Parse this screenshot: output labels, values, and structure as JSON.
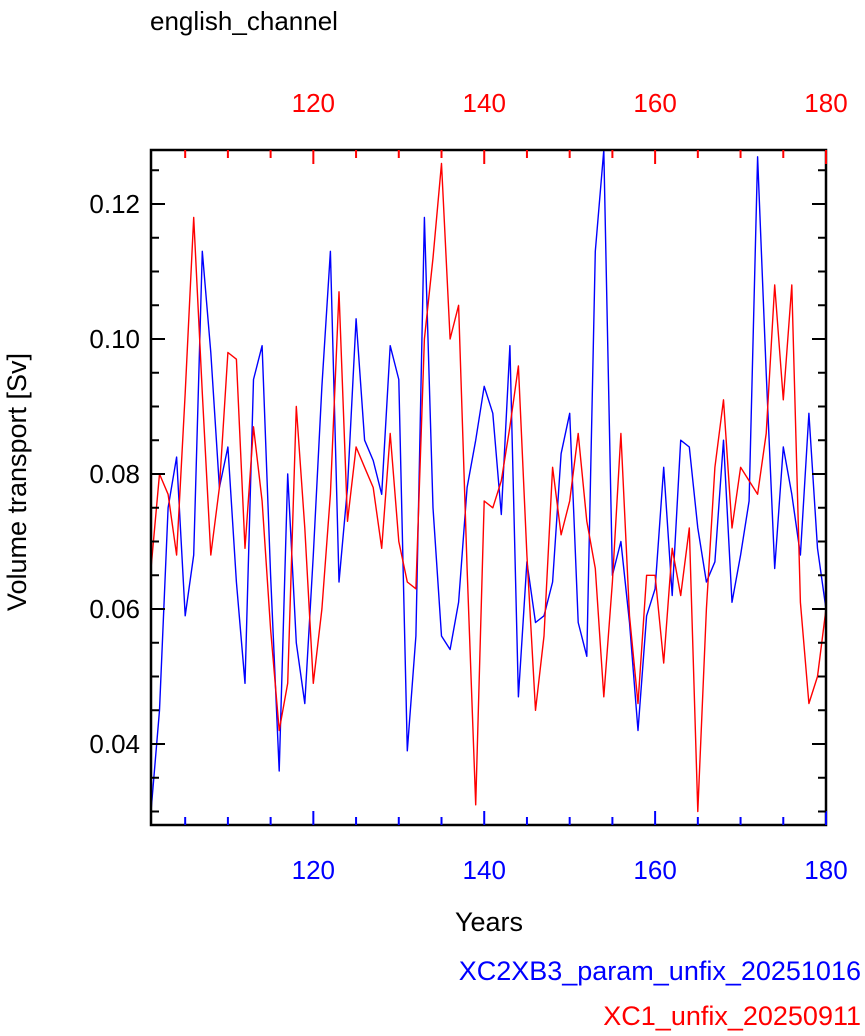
{
  "chart_data": {
    "type": "line",
    "title": "english_channel",
    "xlabel": "Years",
    "ylabel": "Volume transport [Sv]",
    "xlim": [
      101,
      180
    ],
    "ylim": [
      0.028,
      0.128
    ],
    "bottom_axis": {
      "color": "#0000ff",
      "ticks": [
        "120",
        "140",
        "160",
        "180"
      ],
      "tick_values": [
        120,
        140,
        160,
        180
      ]
    },
    "top_axis": {
      "color": "#ff0000",
      "ticks": [
        "120",
        "140",
        "160",
        "180"
      ],
      "tick_values": [
        120,
        140,
        160,
        180
      ]
    },
    "y_ticks": [
      "0.04",
      "0.06",
      "0.08",
      "0.10",
      "0.12"
    ],
    "y_tick_values": [
      0.04,
      0.06,
      0.08,
      0.1,
      0.12
    ],
    "grid": false,
    "legend_placement": "bottom-right",
    "x": [
      101,
      102,
      103,
      104,
      105,
      106,
      107,
      108,
      109,
      110,
      111,
      112,
      113,
      114,
      115,
      116,
      117,
      118,
      119,
      120,
      121,
      122,
      123,
      124,
      125,
      126,
      127,
      128,
      129,
      130,
      131,
      132,
      133,
      134,
      135,
      136,
      137,
      138,
      139,
      140,
      141,
      142,
      143,
      144,
      145,
      146,
      147,
      148,
      149,
      150,
      151,
      152,
      153,
      154,
      155,
      156,
      157,
      158,
      159,
      160,
      161,
      162,
      163,
      164,
      165,
      166,
      167,
      168,
      169,
      170,
      171,
      172,
      173,
      174,
      175,
      176,
      177,
      178,
      179,
      180
    ],
    "series": [
      {
        "name": "XC2XB3_param_unfix_20251016",
        "color": "#0000ff",
        "values": [
          0.03,
          0.045,
          0.075,
          0.0825,
          0.059,
          0.068,
          0.113,
          0.098,
          0.078,
          0.084,
          0.064,
          0.049,
          0.094,
          0.099,
          0.065,
          0.036,
          0.08,
          0.055,
          0.046,
          0.068,
          0.093,
          0.113,
          0.064,
          0.078,
          0.103,
          0.085,
          0.082,
          0.077,
          0.099,
          0.094,
          0.039,
          0.056,
          0.118,
          0.075,
          0.056,
          0.054,
          0.061,
          0.078,
          0.085,
          0.093,
          0.089,
          0.074,
          0.099,
          0.047,
          0.067,
          0.058,
          0.059,
          0.064,
          0.083,
          0.089,
          0.058,
          0.053,
          0.113,
          0.128,
          0.065,
          0.07,
          0.058,
          0.042,
          0.059,
          0.063,
          0.081,
          0.062,
          0.085,
          0.084,
          0.072,
          0.064,
          0.067,
          0.085,
          0.061,
          0.068,
          0.076,
          0.127,
          0.095,
          0.066,
          0.084,
          0.077,
          0.068,
          0.089,
          0.069,
          0.06
        ]
      },
      {
        "name": "XC1_unfix_20250911",
        "color": "#ff0000",
        "values": [
          0.066,
          0.08,
          0.077,
          0.068,
          0.092,
          0.118,
          0.092,
          0.068,
          0.078,
          0.098,
          0.097,
          0.069,
          0.087,
          0.076,
          0.057,
          0.042,
          0.049,
          0.09,
          0.072,
          0.049,
          0.06,
          0.077,
          0.107,
          0.073,
          0.084,
          0.081,
          0.078,
          0.069,
          0.086,
          0.07,
          0.064,
          0.063,
          0.1,
          0.112,
          0.126,
          0.1,
          0.105,
          0.066,
          0.031,
          0.076,
          0.075,
          0.079,
          0.087,
          0.096,
          0.068,
          0.045,
          0.056,
          0.081,
          0.071,
          0.076,
          0.086,
          0.073,
          0.066,
          0.047,
          0.064,
          0.086,
          0.059,
          0.046,
          0.065,
          0.065,
          0.052,
          0.069,
          0.062,
          0.072,
          0.03,
          0.06,
          0.081,
          0.091,
          0.072,
          0.081,
          0.079,
          0.077,
          0.086,
          0.108,
          0.091,
          0.108,
          0.061,
          0.046,
          0.05,
          0.06
        ]
      }
    ]
  }
}
